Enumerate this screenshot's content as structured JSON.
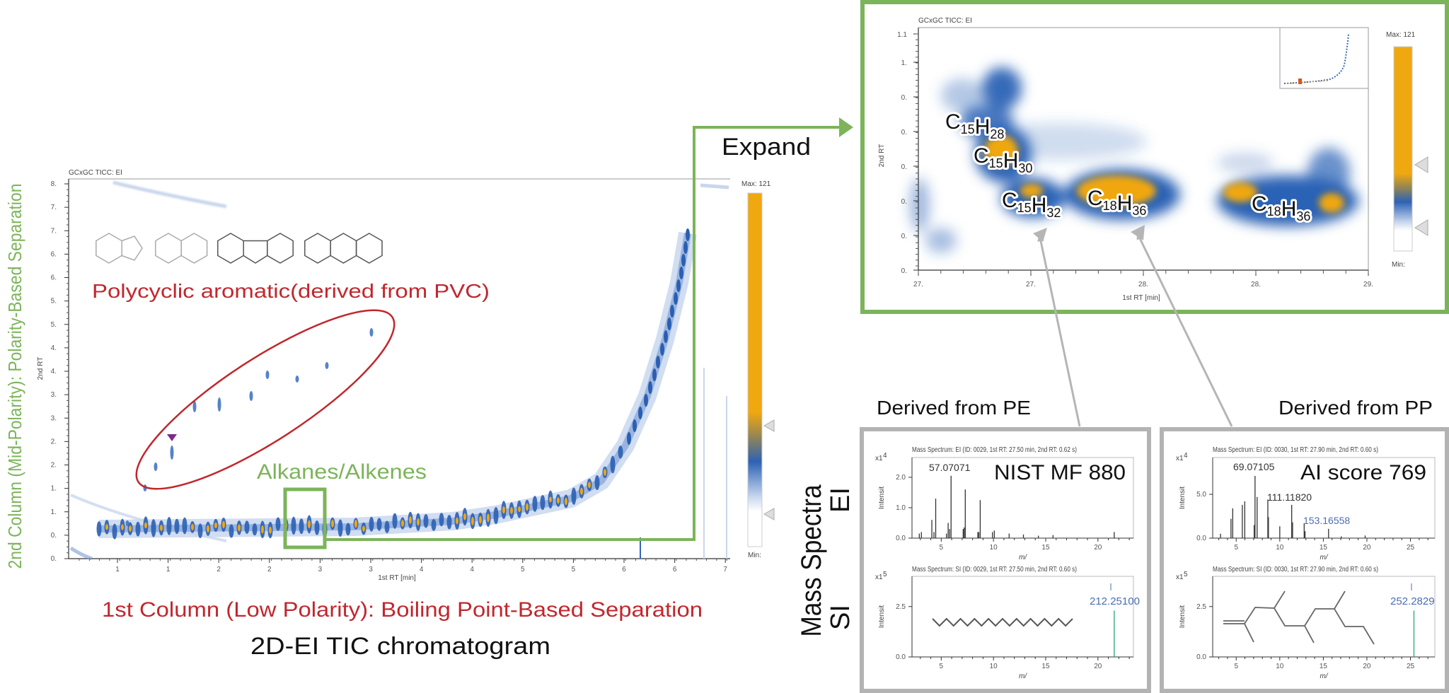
{
  "left_chart": {
    "title": "GCxGC TICC: EI",
    "y_axis_label": "2nd RT",
    "x_axis_label": "1st RT [min]",
    "y_ticks": [
      "8.",
      "7.",
      "7.",
      "6.",
      "6.",
      "5.",
      "5.",
      "4.",
      "4.",
      "3.",
      "3.",
      "2.",
      "2.",
      "1.",
      "1.",
      "0.",
      "0."
    ],
    "x_ticks": [
      "1",
      "1",
      "2",
      "2",
      "3",
      "3",
      "4",
      "4",
      "5",
      "5",
      "6",
      "6",
      "7"
    ],
    "colorbar": {
      "max_label": "Max: 121",
      "min_label": "Min:"
    },
    "pah_structures": [
      "indene",
      "naphthalene",
      "fluorene",
      "anthracene"
    ],
    "pah_label": "Polycyclic aromatic(derived from PVC)",
    "alkane_label": "Alkanes/Alkenes",
    "second_column_label": "2nd Column (Mid-Polarity): Polarity-Based Separation",
    "first_column_label": "1st Column (Low Polarity): Boiling Point-Based Separation",
    "caption": "2D-EI TIC chromatogram"
  },
  "expand_label": "Expand",
  "zoom_chart": {
    "title": "GCxGC TICC: EI",
    "y_axis_label": "2nd RT",
    "x_axis_label": "1st RT [min]",
    "y_ticks": [
      "1.1",
      "1.",
      "0.",
      "0.",
      "0.",
      "0.",
      "0.",
      "0."
    ],
    "x_ticks": [
      "27.",
      "27.",
      "28.",
      "28.",
      "29."
    ],
    "colorbar": {
      "max_label": "Max: 121",
      "min_label": "Min:"
    },
    "compounds": [
      "C15H28",
      "C15H30",
      "C15H32",
      "C18H36",
      "C18H36"
    ]
  },
  "mass_spectra": {
    "label": "Mass Spectra",
    "ei_label": "EI",
    "si_label": "SI",
    "panels": [
      {
        "source": "Derived from PE",
        "ei": {
          "title": "Mass Spectrum: EI (ID: 0029, 1st RT: 27.50 min, 2nd RT: 0.62 s)",
          "multiplier": "x1",
          "exponent": "4",
          "y_label": "Intensit",
          "x_label": "m/",
          "score": "NIST MF 880",
          "peak_labels": [
            "57.07071"
          ],
          "y_ticks": [
            "0.0",
            "1.0",
            "2.0"
          ],
          "x_ticks": [
            "5",
            "10",
            "15",
            "20"
          ],
          "x_range": [
            2.2,
            23.4
          ],
          "y_range": [
            0,
            2.65
          ],
          "peaks": [
            [
              2.9,
              0.15
            ],
            [
              3.1,
              0.2
            ],
            [
              4.1,
              0.6
            ],
            [
              4.3,
              0.2
            ],
            [
              4.47,
              1.3
            ],
            [
              5.5,
              0.15
            ],
            [
              5.66,
              0.5
            ],
            [
              5.8,
              0.3
            ],
            [
              5.94,
              2.05
            ],
            [
              7.1,
              0.3
            ],
            [
              7.2,
              0.35
            ],
            [
              7.3,
              1.6
            ],
            [
              8.5,
              0.2
            ],
            [
              8.6,
              0.2
            ],
            [
              8.73,
              1.25
            ],
            [
              9.9,
              0.2
            ],
            [
              10.08,
              0.25
            ],
            [
              11.5,
              0.15
            ],
            [
              12.87,
              0.12
            ],
            [
              14.3,
              0.08
            ],
            [
              15.7,
              0.1
            ],
            [
              21.56,
              0.2
            ]
          ]
        },
        "si": {
          "title": "Mass Spectrum: SI (ID: 0029, 1st RT: 27.50 min, 2nd RT: 0.60 s)",
          "multiplier": "x1",
          "exponent": "5",
          "y_label": "Intensit",
          "x_label": "m/",
          "peak_labels": [
            "212.25100"
          ],
          "y_ticks": [
            "0.0",
            "2.5"
          ],
          "x_ticks": [
            "5",
            "10",
            "15",
            "20"
          ],
          "x_range": [
            2.2,
            23.4
          ],
          "y_range": [
            0,
            4
          ],
          "peaks": [
            [
              21.56,
              2.3
            ]
          ]
        }
      },
      {
        "source": "Derived from PP",
        "ei": {
          "title": "Mass Spectrum: EI (ID: 0030, 1st RT: 27.90 min, 2nd RT: 0.60 s)",
          "multiplier": "x1",
          "exponent": "4",
          "y_label": "Intensit",
          "x_label": "m/",
          "score": "AI score 769",
          "peak_labels": [
            "69.07105",
            "111.11820",
            "153.16558"
          ],
          "y_ticks": [
            "0.0",
            "5.0"
          ],
          "x_ticks": [
            "5",
            "10",
            "15",
            "20",
            "25"
          ],
          "x_range": [
            2.3,
            27.8
          ],
          "y_range": [
            0,
            9.2
          ],
          "peaks": [
            [
              3.2,
              0.5
            ],
            [
              4.4,
              2.2
            ],
            [
              4.6,
              3.4
            ],
            [
              5.7,
              3.8
            ],
            [
              5.98,
              4.2
            ],
            [
              7.06,
              1.5
            ],
            [
              7.16,
              7.1
            ],
            [
              7.4,
              4.7
            ],
            [
              8.63,
              4.4
            ],
            [
              8.7,
              2.4
            ],
            [
              10.0,
              1.35
            ],
            [
              11.37,
              3.8
            ],
            [
              11.47,
              1.8
            ],
            [
              12.8,
              1.7
            ],
            [
              12.9,
              0.8
            ],
            [
              15.6,
              1.06
            ],
            [
              17.06,
              0.2
            ],
            [
              19.8,
              0.3
            ]
          ]
        },
        "si": {
          "title": "Mass Spectrum: SI (ID: 0030, 1st RT: 27.90 min, 2nd RT: 0.60 s)",
          "multiplier": "x1",
          "exponent": "5",
          "y_label": "Intensit",
          "x_label": "m/",
          "peak_labels": [
            "252.2829"
          ],
          "y_ticks": [
            "0.0",
            "2.5"
          ],
          "x_ticks": [
            "5",
            "10",
            "15",
            "20",
            "25"
          ],
          "x_range": [
            2.3,
            27.8
          ],
          "y_range": [
            0,
            4
          ],
          "peaks": [
            [
              25.4,
              2.3
            ]
          ]
        }
      }
    ]
  },
  "colors": {
    "highlight_green": "#7cb45a",
    "annotation_red": "#c1272d",
    "heat_orange": "#f0a70f",
    "heat_blue": "#2a62b5",
    "si_peak": "#2aa37a",
    "panel_gray": "#b3b3b3"
  }
}
